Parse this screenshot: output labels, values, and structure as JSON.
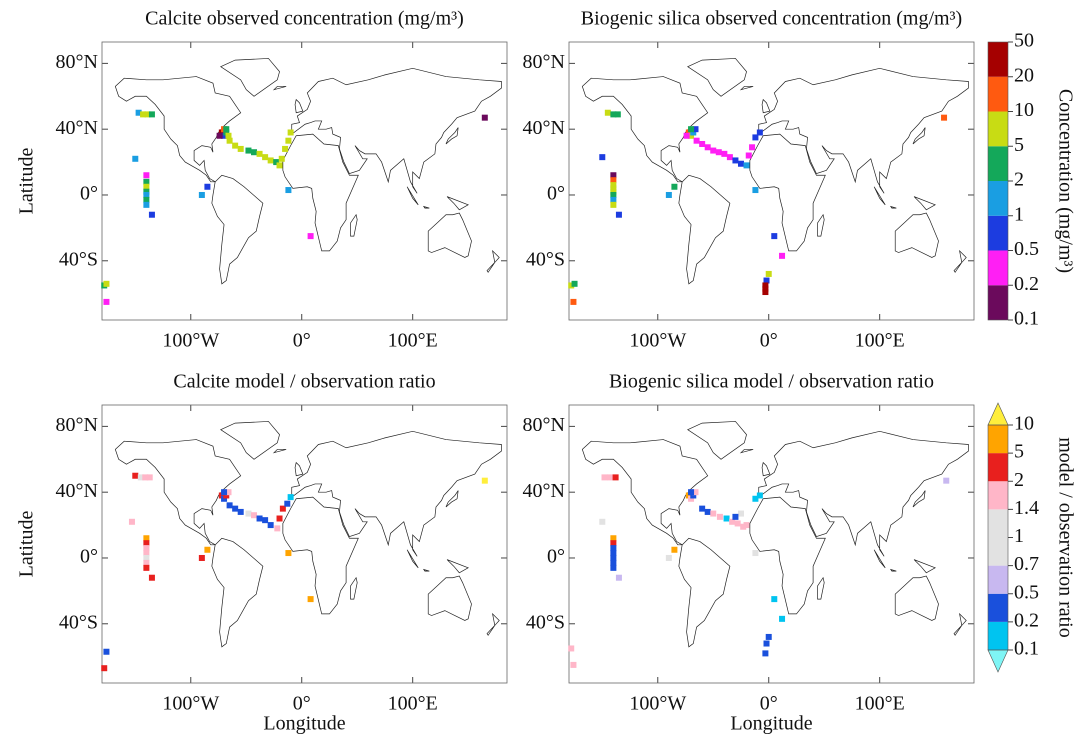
{
  "chart_data": [
    {
      "type": "map",
      "title": "Calcite observed concentration (mg/m³)",
      "ylabel": "Latitude",
      "xlim": [
        -180,
        185
      ],
      "ylim": [
        -76,
        93
      ],
      "xticks": [
        {
          "value": -100,
          "label": "100°W"
        },
        {
          "value": 0,
          "label": "0°"
        },
        {
          "value": 100,
          "label": "100°E"
        }
      ],
      "yticks": [
        {
          "value": 80,
          "label": "80°N"
        },
        {
          "value": 40,
          "label": "40°N"
        },
        {
          "value": 0,
          "label": "0°"
        },
        {
          "value": -40,
          "label": "40°S"
        }
      ],
      "x": [
        -147,
        -143,
        -139,
        -135,
        -150,
        -140,
        -140,
        -140,
        -140,
        -140,
        -140,
        -140,
        -135,
        -85,
        -90,
        -72,
        -70,
        -68,
        -66,
        -70,
        -74,
        -68,
        -65,
        -60,
        -55,
        -48,
        -43,
        -38,
        -33,
        -28,
        -23,
        -20,
        -18,
        -15,
        -12,
        -10,
        -12,
        8,
        165,
        -178,
        -176,
        -176
      ],
      "y": [
        50,
        49,
        49,
        49,
        22,
        12,
        8,
        5,
        2,
        0,
        -3,
        -6,
        -12,
        5,
        0,
        38,
        36,
        38,
        36,
        40,
        36,
        40,
        33,
        30,
        28,
        27,
        26,
        25,
        23,
        21,
        20,
        18,
        22,
        28,
        33,
        38,
        3,
        -25,
        47,
        -55,
        -54,
        -65
      ],
      "values": [
        1.5,
        7,
        7,
        3,
        1.5,
        0.3,
        3,
        7,
        3,
        1.5,
        3,
        1.5,
        0.7,
        0.7,
        1.5,
        30,
        0.7,
        3,
        7,
        15,
        0.15,
        3,
        7,
        7,
        7,
        3,
        3,
        7,
        7,
        7,
        3,
        7,
        7,
        7,
        7,
        7,
        1.5,
        0.3,
        0.15,
        3,
        7,
        0.3
      ]
    },
    {
      "type": "map",
      "title": "Biogenic silica observed concentration (mg/m³)",
      "xlim": [
        -180,
        185
      ],
      "ylim": [
        -76,
        93
      ],
      "xticks": [
        {
          "value": -100,
          "label": "100°W"
        },
        {
          "value": 0,
          "label": "0°"
        },
        {
          "value": 100,
          "label": "100°E"
        }
      ],
      "yticks": [
        {
          "value": 80,
          "label": "80°N"
        },
        {
          "value": 40,
          "label": "40°N"
        },
        {
          "value": 0,
          "label": "0°"
        },
        {
          "value": -40,
          "label": "40°S"
        }
      ],
      "x": [
        -145,
        -140,
        -136,
        -150,
        -140,
        -140,
        -140,
        -140,
        -140,
        -140,
        -140,
        -140,
        -135,
        -85,
        -90,
        -72,
        -70,
        -68,
        -66,
        -74,
        -70,
        -65,
        -60,
        -55,
        -50,
        -45,
        -40,
        -35,
        -30,
        -25,
        -20,
        -18,
        -15,
        -12,
        -8,
        -12,
        5,
        12,
        0,
        -2,
        -3,
        -3,
        -3,
        158,
        -178,
        -175,
        -176
      ],
      "y": [
        50,
        49,
        49,
        23,
        12,
        9,
        6,
        4,
        2,
        0,
        -3,
        -6,
        -12,
        5,
        0,
        38,
        36,
        38,
        40,
        36,
        40,
        33,
        31,
        29,
        27,
        26,
        25,
        23,
        21,
        19,
        18,
        24,
        29,
        35,
        38,
        3,
        -25,
        -37,
        -48,
        -52,
        -55,
        -57,
        -59,
        47,
        -55,
        -54,
        -65
      ],
      "values": [
        7,
        3,
        3,
        0.7,
        0.15,
        15,
        7,
        7,
        7,
        3,
        1.5,
        7,
        0.7,
        3,
        1.5,
        15,
        7,
        1.5,
        0.7,
        0.3,
        3,
        0.3,
        0.3,
        0.3,
        0.3,
        0.3,
        0.3,
        0.3,
        0.7,
        0.7,
        1.5,
        0.3,
        0.3,
        0.7,
        0.7,
        1.5,
        0.7,
        0.3,
        7,
        0.7,
        30,
        30,
        30,
        15,
        7,
        3,
        15
      ],
      "colorbar": {
        "label": "Concentration (mg/m³)",
        "ticks": [
          0.1,
          0.2,
          0.5,
          1,
          2,
          5,
          10,
          20,
          50
        ],
        "colors": [
          "#6b0a5c",
          "#ff1ff4",
          "#1c3ce0",
          "#1a9ee2",
          "#14a85a",
          "#c8dc14",
          "#ff5a10",
          "#a50000"
        ]
      }
    },
    {
      "type": "map",
      "title": "Calcite model / observation ratio",
      "xlabel": "Longitude",
      "ylabel": "Latitude",
      "xlim": [
        -180,
        185
      ],
      "ylim": [
        -76,
        93
      ],
      "xticks": [
        {
          "value": -100,
          "label": "100°W"
        },
        {
          "value": 0,
          "label": "0°"
        },
        {
          "value": 100,
          "label": "100°E"
        }
      ],
      "yticks": [
        {
          "value": 80,
          "label": "80°N"
        },
        {
          "value": 40,
          "label": "40°N"
        },
        {
          "value": 0,
          "label": "0°"
        },
        {
          "value": -40,
          "label": "40°S"
        }
      ],
      "x": [
        -150,
        -145,
        -141,
        -137,
        -153,
        -140,
        -140,
        -140,
        -140,
        -140,
        -140,
        -140,
        -135,
        -85,
        -90,
        -72,
        -70,
        -68,
        -66,
        -70,
        -65,
        -60,
        -55,
        -48,
        -43,
        -38,
        -33,
        -28,
        -22,
        -20,
        -17,
        -13,
        -10,
        -12,
        8,
        165,
        -176,
        -178
      ],
      "y": [
        50,
        49,
        49,
        49,
        22,
        12,
        9,
        6,
        3,
        0,
        -3,
        -6,
        -12,
        5,
        0,
        38,
        36,
        38,
        40,
        40,
        32,
        30,
        28,
        27,
        26,
        24,
        23,
        20,
        18,
        24,
        30,
        33,
        37,
        3,
        -25,
        47,
        -57,
        -67
      ],
      "values": [
        3,
        1.2,
        1.7,
        1.7,
        1.7,
        7,
        3,
        1.7,
        1.7,
        1.2,
        1.7,
        3,
        3,
        7,
        3,
        3,
        0.3,
        3,
        1.7,
        0.3,
        0.3,
        0.3,
        0.3,
        1.2,
        1.7,
        0.3,
        0.3,
        0.3,
        1.7,
        3,
        3,
        0.3,
        0.15,
        7,
        7,
        15,
        0.3,
        3
      ]
    },
    {
      "type": "map",
      "title": "Biogenic silica model / observation ratio",
      "xlabel": "Longitude",
      "xlim": [
        -180,
        185
      ],
      "ylim": [
        -76,
        93
      ],
      "xticks": [
        {
          "value": -100,
          "label": "100°W"
        },
        {
          "value": 0,
          "label": "0°"
        },
        {
          "value": 100,
          "label": "100°E"
        }
      ],
      "yticks": [
        {
          "value": 80,
          "label": "80°N"
        },
        {
          "value": 40,
          "label": "40°N"
        },
        {
          "value": 0,
          "label": "0°"
        },
        {
          "value": -40,
          "label": "40°S"
        }
      ],
      "x": [
        -148,
        -143,
        -138,
        -150,
        -140,
        -140,
        -140,
        -140,
        -140,
        -140,
        -140,
        -135,
        -85,
        -90,
        -72,
        -70,
        -68,
        -66,
        -70,
        -60,
        -55,
        -50,
        -44,
        -38,
        -33,
        -28,
        -23,
        -20,
        -25,
        -30,
        -12,
        -8,
        -12,
        5,
        12,
        0,
        -2,
        -3,
        160,
        -178,
        -176
      ],
      "y": [
        49,
        49,
        49,
        22,
        12,
        9,
        6,
        3,
        0,
        -3,
        -6,
        -12,
        5,
        0,
        38,
        36,
        38,
        40,
        40,
        30,
        28,
        27,
        25,
        24,
        22,
        21,
        19,
        20,
        27,
        25,
        36,
        38,
        3,
        -25,
        -37,
        -48,
        -52,
        -58,
        47,
        -55,
        -65
      ],
      "values": [
        1.7,
        1.7,
        3,
        1.2,
        7,
        3,
        0.3,
        0.3,
        0.3,
        0.3,
        0.3,
        0.6,
        7,
        1.2,
        7,
        1.7,
        0.3,
        1.7,
        0.3,
        0.3,
        0.3,
        1.7,
        1.7,
        0.15,
        1.7,
        1.7,
        1.7,
        1.7,
        1.2,
        0.3,
        0.15,
        0.15,
        1.2,
        0.15,
        0.15,
        0.3,
        0.3,
        0.3,
        0.6,
        1.7,
        1.7
      ],
      "colorbar": {
        "label": "model / observation ratio",
        "ticks": [
          0.1,
          0.2,
          0.5,
          0.7,
          1,
          1.4,
          2,
          5,
          10
        ],
        "extend": "both",
        "colors": [
          "#7ff5f5",
          "#00c4f0",
          "#1a50dc",
          "#c8b8f0",
          "#e2e2e2",
          "#e2e2e2",
          "#ffb6c8",
          "#e8201e",
          "#ffa400",
          "#ffee3c"
        ]
      }
    }
  ]
}
